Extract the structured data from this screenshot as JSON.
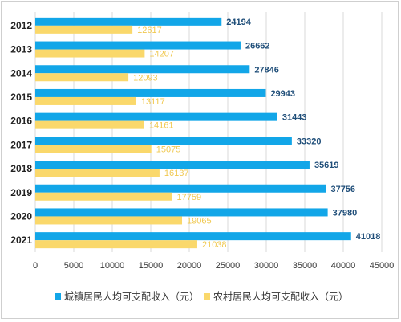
{
  "colors": {
    "urban": "#12a6e8",
    "rural": "#fad86b",
    "urban_label": "#1f4e79",
    "rural_label": "#f0c850",
    "grid": "#d9d9d9"
  },
  "chart_data": {
    "type": "bar",
    "orientation": "horizontal",
    "title": "",
    "xlabel": "",
    "ylabel": "",
    "categories": [
      "2012",
      "2013",
      "2014",
      "2015",
      "2016",
      "2017",
      "2018",
      "2019",
      "2020",
      "2021"
    ],
    "series": [
      {
        "name": "城镇居民人均可支配收入（元）",
        "values": [
          24194,
          26662,
          27846,
          29943,
          31443,
          33320,
          35619,
          37756,
          37980,
          41018
        ]
      },
      {
        "name": "农村居民人均可支配收入（元）",
        "values": [
          12617,
          14207,
          12093,
          13117,
          14161,
          15075,
          16137,
          17759,
          19065,
          21038
        ]
      }
    ],
    "xlim": [
      0,
      45000
    ],
    "xticks": [
      0,
      5000,
      10000,
      15000,
      20000,
      25000,
      30000,
      35000,
      40000,
      45000
    ],
    "gridlines": true,
    "legend_position": "bottom",
    "data_labels": true
  }
}
